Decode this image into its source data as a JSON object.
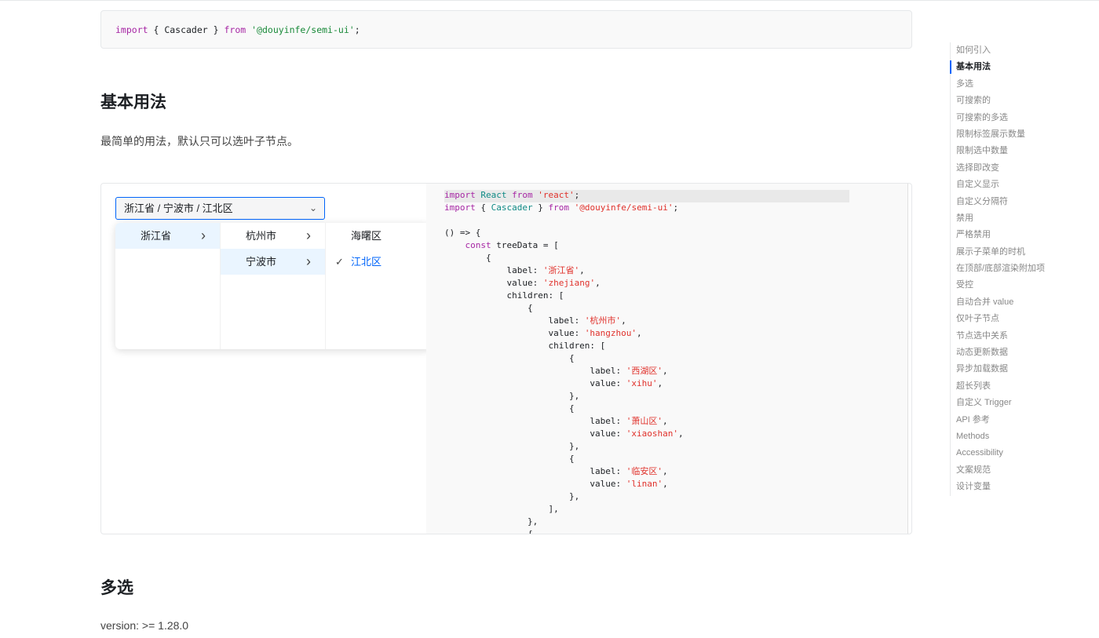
{
  "import_snippet": [
    {
      "t": "import",
      "k": "kw"
    },
    {
      "t": " { Cascader } ",
      "k": "pl"
    },
    {
      "t": "from",
      "k": "kw"
    },
    {
      "t": " ",
      "k": "pl"
    },
    {
      "t": "'@douyinfe/semi-ui'",
      "k": "str2"
    },
    {
      "t": ";",
      "k": "pl"
    }
  ],
  "section1": {
    "title": "基本用法",
    "description": "最简单的用法，默认只可以选叶子节点。"
  },
  "cascader": {
    "value": "浙江省 / 宁波市 / 江北区",
    "columns": [
      [
        {
          "label": "浙江省",
          "active": true,
          "has_children": true
        }
      ],
      [
        {
          "label": "杭州市",
          "active": false,
          "has_children": true
        },
        {
          "label": "宁波市",
          "active": true,
          "has_children": true
        }
      ],
      [
        {
          "label": "海曙区",
          "selected": false
        },
        {
          "label": "江北区",
          "selected": true
        }
      ]
    ]
  },
  "code_lines": [
    [
      {
        "t": "import",
        "k": "kw"
      },
      {
        "t": " ",
        "k": "pl"
      },
      {
        "t": "React",
        "k": "type"
      },
      {
        "t": " ",
        "k": "pl"
      },
      {
        "t": "from",
        "k": "kw"
      },
      {
        "t": " ",
        "k": "pl"
      },
      {
        "t": "'react'",
        "k": "str"
      },
      {
        "t": ";",
        "k": "pl"
      }
    ],
    [
      {
        "t": "import",
        "k": "kw"
      },
      {
        "t": " { ",
        "k": "pl"
      },
      {
        "t": "Cascader",
        "k": "type"
      },
      {
        "t": " } ",
        "k": "pl"
      },
      {
        "t": "from",
        "k": "kw"
      },
      {
        "t": " ",
        "k": "pl"
      },
      {
        "t": "'@douyinfe/semi-ui'",
        "k": "str"
      },
      {
        "t": ";",
        "k": "pl"
      }
    ],
    [],
    [
      {
        "t": "() => {",
        "k": "pl"
      }
    ],
    [
      {
        "t": "    ",
        "k": "pl"
      },
      {
        "t": "const",
        "k": "kw"
      },
      {
        "t": " treeData = [",
        "k": "pl"
      }
    ],
    [
      {
        "t": "        {",
        "k": "pl"
      }
    ],
    [
      {
        "t": "            label: ",
        "k": "pl"
      },
      {
        "t": "'浙江省'",
        "k": "str"
      },
      {
        "t": ",",
        "k": "pl"
      }
    ],
    [
      {
        "t": "            value: ",
        "k": "pl"
      },
      {
        "t": "'zhejiang'",
        "k": "str"
      },
      {
        "t": ",",
        "k": "pl"
      }
    ],
    [
      {
        "t": "            children: [",
        "k": "pl"
      }
    ],
    [
      {
        "t": "                {",
        "k": "pl"
      }
    ],
    [
      {
        "t": "                    label: ",
        "k": "pl"
      },
      {
        "t": "'杭州市'",
        "k": "str"
      },
      {
        "t": ",",
        "k": "pl"
      }
    ],
    [
      {
        "t": "                    value: ",
        "k": "pl"
      },
      {
        "t": "'hangzhou'",
        "k": "str"
      },
      {
        "t": ",",
        "k": "pl"
      }
    ],
    [
      {
        "t": "                    children: [",
        "k": "pl"
      }
    ],
    [
      {
        "t": "                        {",
        "k": "pl"
      }
    ],
    [
      {
        "t": "                            label: ",
        "k": "pl"
      },
      {
        "t": "'西湖区'",
        "k": "str"
      },
      {
        "t": ",",
        "k": "pl"
      }
    ],
    [
      {
        "t": "                            value: ",
        "k": "pl"
      },
      {
        "t": "'xihu'",
        "k": "str"
      },
      {
        "t": ",",
        "k": "pl"
      }
    ],
    [
      {
        "t": "                        },",
        "k": "pl"
      }
    ],
    [
      {
        "t": "                        {",
        "k": "pl"
      }
    ],
    [
      {
        "t": "                            label: ",
        "k": "pl"
      },
      {
        "t": "'萧山区'",
        "k": "str"
      },
      {
        "t": ",",
        "k": "pl"
      }
    ],
    [
      {
        "t": "                            value: ",
        "k": "pl"
      },
      {
        "t": "'xiaoshan'",
        "k": "str"
      },
      {
        "t": ",",
        "k": "pl"
      }
    ],
    [
      {
        "t": "                        },",
        "k": "pl"
      }
    ],
    [
      {
        "t": "                        {",
        "k": "pl"
      }
    ],
    [
      {
        "t": "                            label: ",
        "k": "pl"
      },
      {
        "t": "'临安区'",
        "k": "str"
      },
      {
        "t": ",",
        "k": "pl"
      }
    ],
    [
      {
        "t": "                            value: ",
        "k": "pl"
      },
      {
        "t": "'linan'",
        "k": "str"
      },
      {
        "t": ",",
        "k": "pl"
      }
    ],
    [
      {
        "t": "                        },",
        "k": "pl"
      }
    ],
    [
      {
        "t": "                    ],",
        "k": "pl"
      }
    ],
    [
      {
        "t": "                },",
        "k": "pl"
      }
    ],
    [
      {
        "t": "                {",
        "k": "pl"
      }
    ]
  ],
  "section2": {
    "title": "多选",
    "description": "version: >= 1.28.0"
  },
  "toc": {
    "active_index": 1,
    "items": [
      "如何引入",
      "基本用法",
      "多选",
      "可搜索的",
      "可搜索的多选",
      "限制标签展示数量",
      "限制选中数量",
      "选择即改变",
      "自定义显示",
      "自定义分隔符",
      "禁用",
      "严格禁用",
      "展示子菜单的时机",
      "在顶部/底部渲染附加项",
      "受控",
      "自动合并 value",
      "仅叶子节点",
      "节点选中关系",
      "动态更新数据",
      "异步加载数据",
      "超长列表",
      "自定义 Trigger",
      "API 参考",
      "Methods",
      "Accessibility",
      "文案规范",
      "设计变量"
    ]
  },
  "icons": {
    "chevron_down": "chevron-down-icon",
    "chevron_right": "chevron-right-icon",
    "check": "check-icon"
  },
  "colors": {
    "accent": "#0064fa",
    "option_active_bg": "#eaf5ff",
    "keyword": "#a626a4",
    "string": "#e0312b"
  }
}
